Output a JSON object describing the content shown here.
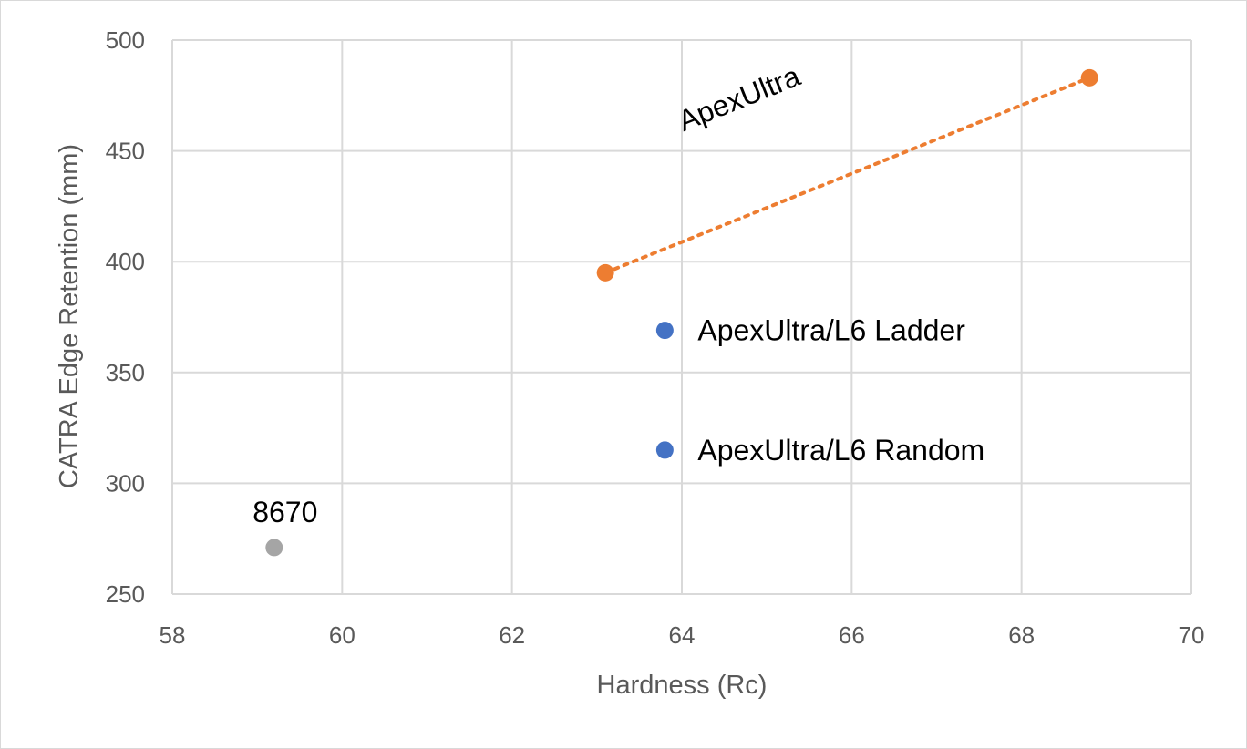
{
  "chart_data": {
    "type": "scatter",
    "title": "",
    "xlabel": "Hardness (Rc)",
    "ylabel": "CATRA Edge Retention (mm)",
    "xlim": [
      58,
      70
    ],
    "ylim": [
      250,
      500
    ],
    "x_ticks": [
      58,
      60,
      62,
      64,
      66,
      68,
      70
    ],
    "y_ticks": [
      250,
      300,
      350,
      400,
      450,
      500
    ],
    "grid": true,
    "legend": "none",
    "series": [
      {
        "label": "ApexUltra",
        "color": "#ED7D31",
        "trendline": "dotted",
        "points": [
          {
            "x": 63.1,
            "y": 395
          },
          {
            "x": 68.8,
            "y": 483
          }
        ]
      },
      {
        "label": "ApexUltra/L6 Ladder",
        "color": "#4472C4",
        "points": [
          {
            "x": 63.8,
            "y": 369
          }
        ]
      },
      {
        "label": "ApexUltra/L6 Random",
        "color": "#4472C4",
        "points": [
          {
            "x": 63.8,
            "y": 315
          }
        ]
      },
      {
        "label": "8670",
        "color": "#A5A5A5",
        "points": [
          {
            "x": 59.2,
            "y": 271
          }
        ]
      }
    ]
  }
}
